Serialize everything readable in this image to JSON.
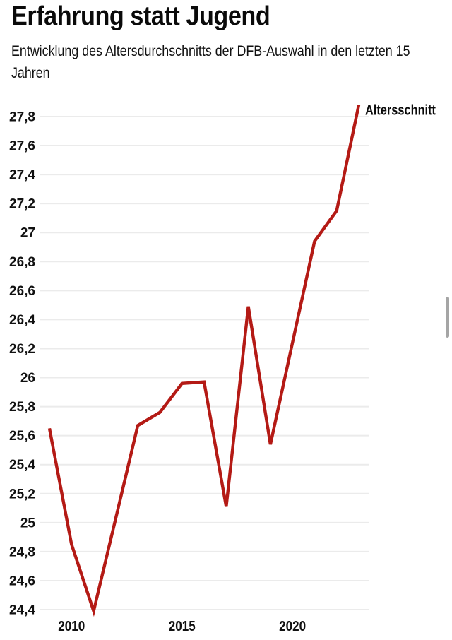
{
  "header": {
    "title": "Erfahrung statt Jugend",
    "subtitle_lines": [
      "Entwicklung des Altersdurchschnitts der DFB-Auswahl in den letzten 15",
      "Jahren"
    ]
  },
  "chart_data": {
    "type": "line",
    "title": "Erfahrung statt Jugend",
    "subtitle": "Entwicklung des Altersdurchschnitts der DFB-Auswahl in den letzten 15 Jahren",
    "x": [
      2009,
      2010,
      2011,
      2012,
      2013,
      2014,
      2015,
      2016,
      2017,
      2018,
      2019,
      2020,
      2021,
      2022,
      2023
    ],
    "series": [
      {
        "name": "Altersschnitt",
        "values": [
          25.65,
          24.85,
          24.39,
          25.03,
          25.67,
          25.76,
          25.96,
          25.97,
          25.11,
          26.49,
          25.54,
          26.24,
          26.94,
          27.15,
          27.88
        ]
      }
    ],
    "end_label": "Altersschnitt",
    "xticks": [
      2010,
      2015,
      2020
    ],
    "yticks": [
      27.8,
      27.6,
      27.4,
      27.2,
      27.0,
      26.8,
      26.6,
      26.4,
      26.2,
      26.0,
      25.8,
      25.6,
      25.4,
      25.2,
      25.0,
      24.8,
      24.6,
      24.4
    ],
    "ylim": [
      24.35,
      27.9
    ],
    "xlabel": "",
    "ylabel": "",
    "grid": true,
    "legend_position": "end-of-line",
    "decimal_separator": ",",
    "colors": {
      "line": "#b41a15",
      "grid": "#ebebeb",
      "tick_text": "#111111"
    }
  },
  "scrollbar": {
    "visible": true
  }
}
